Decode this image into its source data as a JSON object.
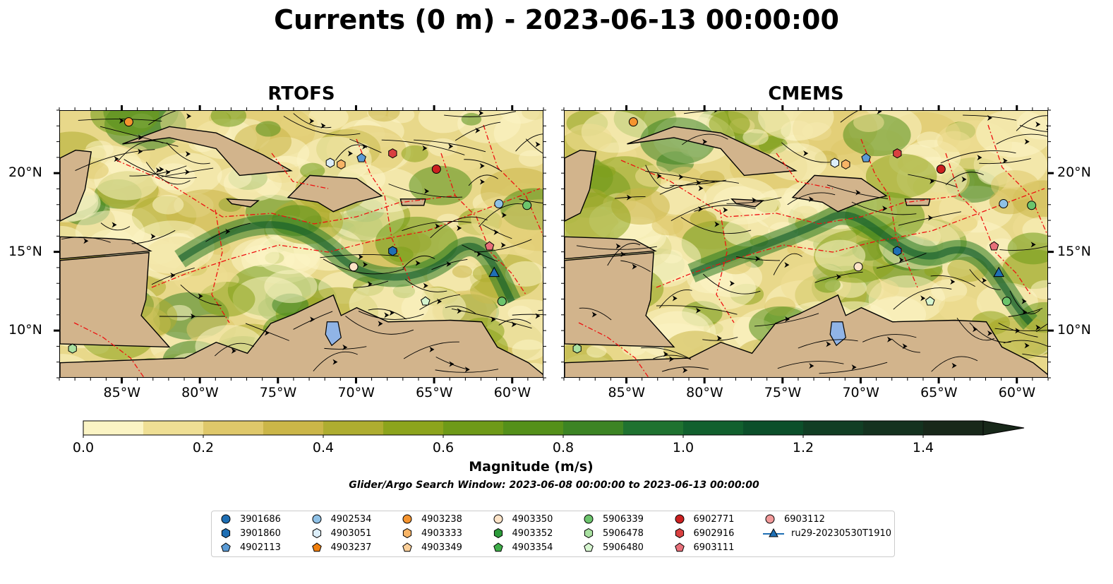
{
  "title": "Currents (0 m) - 2023-06-13 00:00:00",
  "panels": [
    {
      "title": "RTOFS"
    },
    {
      "title": "CMEMS"
    }
  ],
  "axes": {
    "lat_labels": [
      "20°N",
      "15°N",
      "10°N"
    ],
    "lon_labels": [
      "85°W",
      "80°W",
      "75°W",
      "70°W",
      "65°W",
      "60°W"
    ]
  },
  "colorbar": {
    "label": "Magnitude (m/s)",
    "ticks": [
      "0.0",
      "0.2",
      "0.4",
      "0.6",
      "0.8",
      "1.0",
      "1.2",
      "1.4"
    ],
    "range": [
      0.0,
      1.5
    ],
    "extend": "max",
    "colors": [
      "#fbf4c4",
      "#efdf94",
      "#dfc86a",
      "#cbb648",
      "#aead30",
      "#8ca41c",
      "#6e9a18",
      "#54901a",
      "#3c8424",
      "#1f7230",
      "#11602e",
      "#0c4f2a",
      "#113e24",
      "#14321f",
      "#18281a"
    ]
  },
  "search_window": "Glider/Argo Search Window: 2023-06-08 00:00:00 to 2023-06-13 00:00:00",
  "legend": {
    "items": [
      {
        "label": "3901686",
        "marker": "circle",
        "color": "#1f6fb4"
      },
      {
        "label": "3901860",
        "marker": "hexagon",
        "color": "#1f6fb4"
      },
      {
        "label": "4902113",
        "marker": "pentagon",
        "color": "#5b9bd5"
      },
      {
        "label": "4902534",
        "marker": "circle",
        "color": "#8fc1e6"
      },
      {
        "label": "4903051",
        "marker": "hexagon",
        "color": "#dceefa"
      },
      {
        "label": "4903237",
        "marker": "pentagon",
        "color": "#f07f0e"
      },
      {
        "label": "4903238",
        "marker": "circle",
        "color": "#f5942f"
      },
      {
        "label": "4903333",
        "marker": "hexagon",
        "color": "#f7b466"
      },
      {
        "label": "4903349",
        "marker": "pentagon",
        "color": "#fbcf99"
      },
      {
        "label": "4903350",
        "marker": "circle",
        "color": "#fde3c7"
      },
      {
        "label": "4903352",
        "marker": "hexagon",
        "color": "#2c9b3a"
      },
      {
        "label": "4903354",
        "marker": "pentagon",
        "color": "#3fae49"
      },
      {
        "label": "5906339",
        "marker": "circle",
        "color": "#6cc46c"
      },
      {
        "label": "5906478",
        "marker": "hexagon",
        "color": "#a9e1a1"
      },
      {
        "label": "5906480",
        "marker": "pentagon",
        "color": "#d6f5cf"
      },
      {
        "label": "6902771",
        "marker": "circle",
        "color": "#cc2020"
      },
      {
        "label": "6902916",
        "marker": "hexagon",
        "color": "#d94040"
      },
      {
        "label": "6903111",
        "marker": "pentagon",
        "color": "#e8707a"
      },
      {
        "label": "6903112",
        "marker": "circle",
        "color": "#f29a9a"
      },
      {
        "label": "ru29-20230530T1910",
        "marker": "triangle-line",
        "color": "#1f6fb4"
      }
    ]
  },
  "colors": {
    "land": "#d2b48c",
    "lake": "#90b4e6",
    "eez_line": "#ee1111",
    "streamline": "#000000"
  }
}
